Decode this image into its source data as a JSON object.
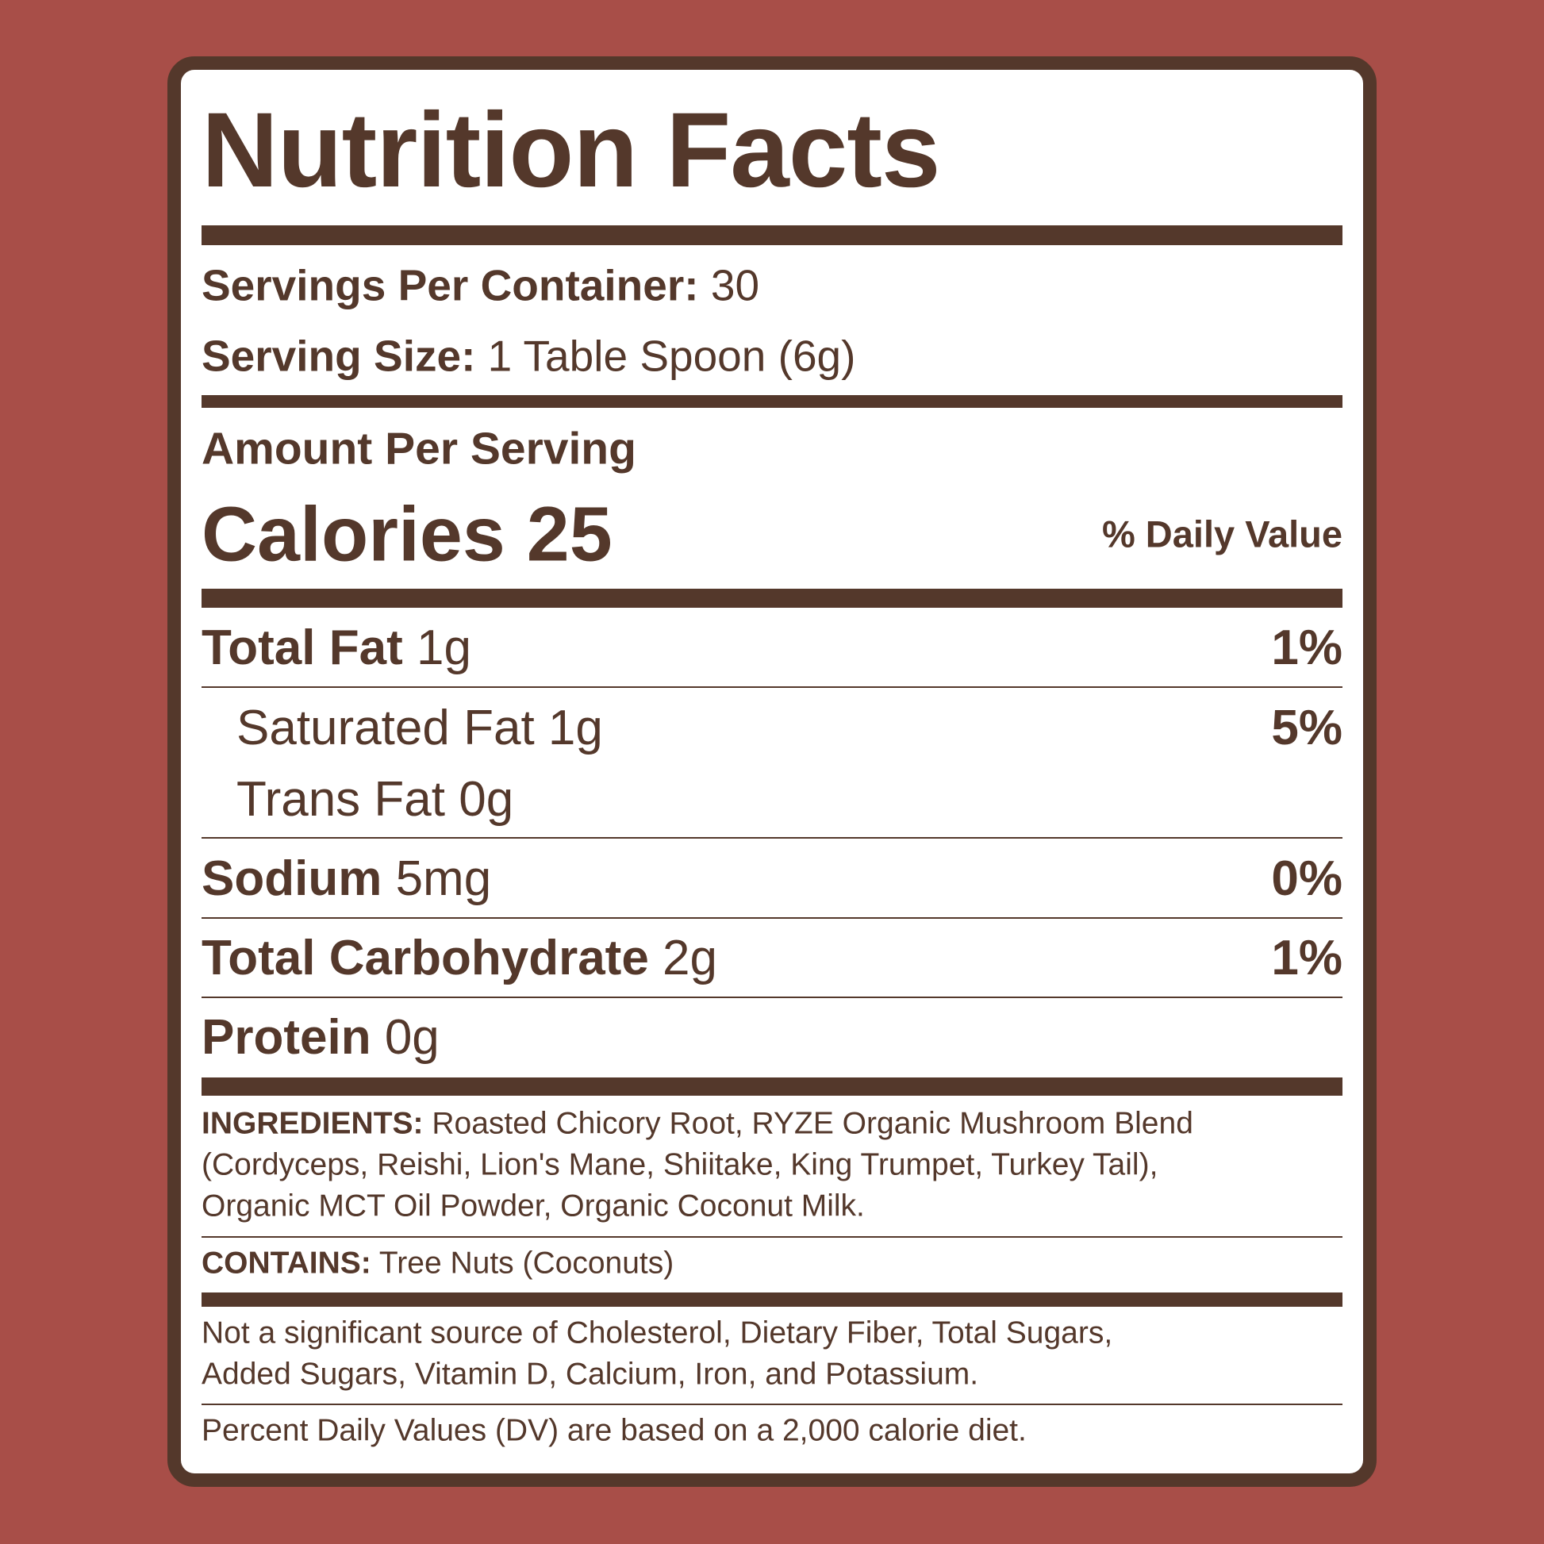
{
  "colors": {
    "background": "#a84e48",
    "ink": "#54382b",
    "panel": "#ffffff"
  },
  "title": "Nutrition Facts",
  "servings": {
    "label": "Servings Per Container:",
    "value": "30"
  },
  "serving_size": {
    "label": "Serving Size:",
    "value": "1 Table Spoon (6g)"
  },
  "amount_per_serving": "Amount Per Serving",
  "calories": {
    "label": "Calories",
    "value": "25"
  },
  "dv_header": "% Daily Value",
  "nutrients": [
    {
      "name": "Total Fat",
      "amount": "1g",
      "dv": "1%"
    },
    {
      "name": "Saturated Fat",
      "amount": "1g",
      "dv": "5%"
    },
    {
      "name": "Trans Fat",
      "amount": "0g",
      "dv": ""
    },
    {
      "name": "Sodium",
      "amount": "5mg",
      "dv": "0%"
    },
    {
      "name": "Total Carbohydrate",
      "amount": "2g",
      "dv": "1%"
    },
    {
      "name": "Protein",
      "amount": "0g",
      "dv": ""
    }
  ],
  "ingredients": {
    "label": "INGREDIENTS:",
    "lines": [
      "Roasted Chicory Root, RYZE Organic Mushroom Blend",
      "(Cordyceps, Reishi, Lion's Mane, Shiitake, King Trumpet, Turkey Tail),",
      "Organic MCT Oil Powder, Organic Coconut Milk."
    ]
  },
  "contains": {
    "label": "CONTAINS:",
    "value": "Tree Nuts (Coconuts)"
  },
  "not_significant": [
    "Not a significant source of Cholesterol, Dietary Fiber, Total Sugars,",
    "Added Sugars, Vitamin D, Calcium, Iron, and Potassium."
  ],
  "footnote": "Percent Daily Values (DV) are based on a 2,000 calorie diet."
}
